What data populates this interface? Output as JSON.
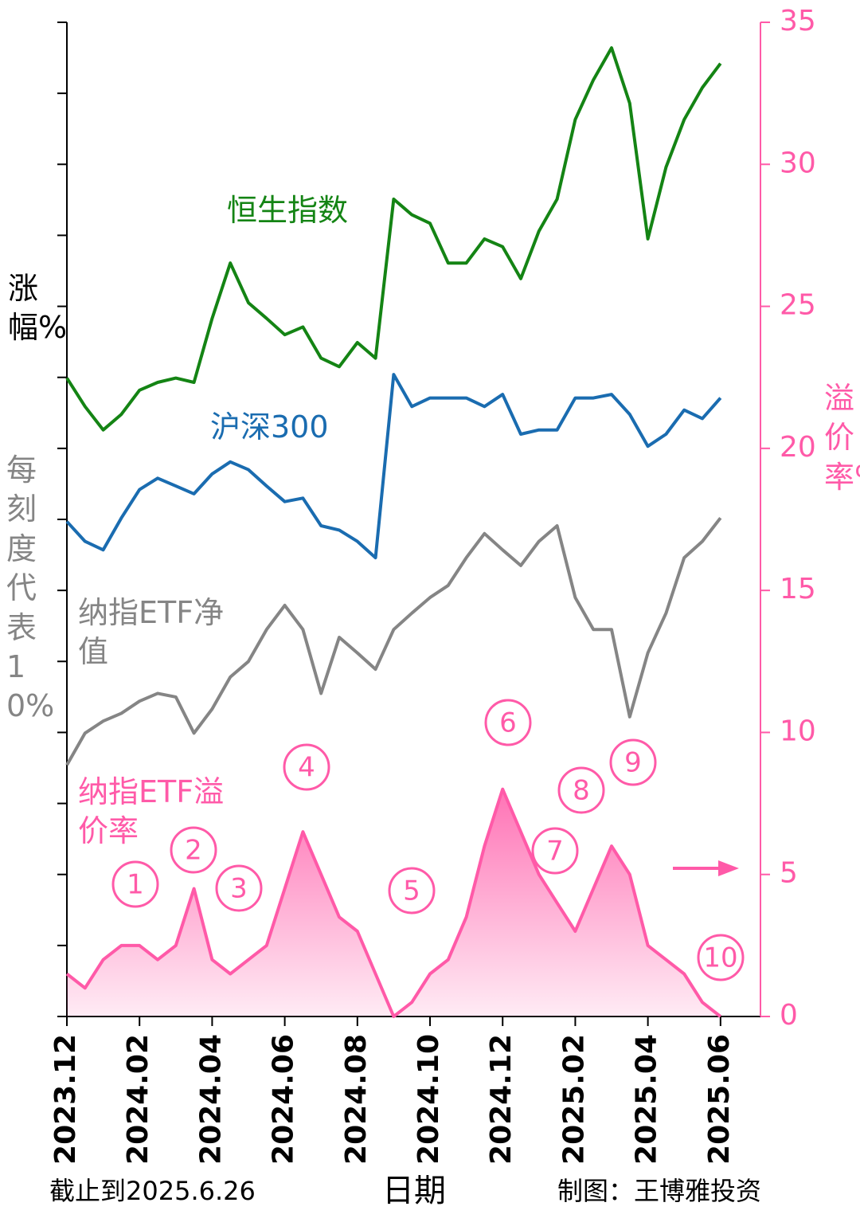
{
  "chart_data": {
    "type": "line",
    "x_label": "日期",
    "y_label": "涨幅%",
    "y_note": "每刻度代表10%",
    "y2_label": "溢价率%",
    "note": "截止到2025.6.26",
    "credit": "制图：王博雅投资",
    "xlim": [
      0,
      19.1
    ],
    "xticks": [
      {
        "value": 0,
        "label": "2023.12"
      },
      {
        "value": 2,
        "label": "2024.02"
      },
      {
        "value": 4,
        "label": "2024.04"
      },
      {
        "value": 6,
        "label": "2024.06"
      },
      {
        "value": 8,
        "label": "2024.08"
      },
      {
        "value": 10,
        "label": "2024.10"
      },
      {
        "value": 12,
        "label": "2024.12"
      },
      {
        "value": 14,
        "label": "2025.02"
      },
      {
        "value": 16,
        "label": "2025.04"
      },
      {
        "value": 18,
        "label": "2025.06"
      }
    ],
    "ylim": [
      0,
      140
    ],
    "yticks": [
      0,
      10,
      20,
      30,
      40,
      50,
      60,
      70,
      80,
      90,
      100,
      110,
      120,
      130,
      140
    ],
    "y2lim": [
      0,
      35
    ],
    "y2ticks": [
      0,
      5,
      10,
      15,
      20,
      25,
      30,
      35
    ],
    "x": [
      0,
      0.5,
      1,
      1.5,
      2,
      2.5,
      3,
      3.5,
      4,
      4.5,
      5,
      5.5,
      6,
      6.5,
      7,
      7.5,
      8,
      8.5,
      9,
      9.5,
      10,
      10.5,
      11,
      11.5,
      12,
      12.5,
      13,
      13.5,
      14,
      14.5,
      15,
      15.5,
      16,
      16.5,
      17,
      17.5,
      18
    ],
    "series": [
      {
        "name": "恒生指数",
        "color": "#148414",
        "values": [
          89.9,
          85.9,
          82.6,
          84.8,
          88.2,
          89.3,
          89.9,
          89.3,
          98.3,
          106.1,
          100.5,
          98.3,
          96.0,
          97.1,
          92.7,
          91.5,
          94.9,
          92.7,
          115.1,
          112.9,
          111.7,
          106.1,
          106.1,
          109.5,
          108.4,
          103.9,
          110.6,
          115.1,
          126.3,
          131.9,
          136.4,
          128.6,
          109.5,
          119.6,
          126.3,
          130.8,
          134.2
        ]
      },
      {
        "name": "沪深300",
        "color": "#1a6cb0",
        "values": [
          69.7,
          66.9,
          65.7,
          70.2,
          74.2,
          75.8,
          74.7,
          73.6,
          76.4,
          78.1,
          77.0,
          74.7,
          72.5,
          73.0,
          69.1,
          68.5,
          66.9,
          64.6,
          90.4,
          85.9,
          87.1,
          87.1,
          87.1,
          85.9,
          87.6,
          82.0,
          82.6,
          82.6,
          87.1,
          87.1,
          87.6,
          84.8,
          80.3,
          82.0,
          85.4,
          84.2,
          87.1
        ]
      },
      {
        "name": "纳指ETF净值",
        "color": "#858585",
        "values": [
          35.4,
          39.9,
          41.6,
          42.7,
          44.4,
          45.5,
          45.0,
          39.9,
          43.3,
          47.8,
          50.0,
          54.5,
          57.9,
          54.5,
          45.5,
          53.4,
          51.2,
          48.9,
          54.5,
          56.8,
          59.0,
          60.7,
          64.6,
          68.0,
          65.7,
          63.5,
          66.9,
          69.1,
          59.0,
          54.5,
          54.5,
          42.2,
          51.2,
          56.8,
          64.6,
          66.9,
          70.2
        ]
      },
      {
        "name": "纳指ETF溢价率",
        "color": "#ff5aa8",
        "axis": "y2",
        "area": true,
        "values": [
          1.5,
          1.0,
          2.0,
          2.5,
          2.5,
          2.0,
          2.5,
          4.5,
          2.0,
          1.5,
          2.0,
          2.5,
          4.5,
          6.5,
          5.0,
          3.5,
          3.0,
          1.5,
          0.0,
          0.5,
          1.5,
          2.0,
          3.5,
          6.0,
          8.0,
          6.5,
          5.0,
          4.0,
          3.0,
          4.5,
          6.0,
          5.0,
          2.5,
          2.0,
          1.5,
          0.5,
          0.0
        ]
      }
    ],
    "annotations": [
      "1",
      "2",
      "3",
      "4",
      "5",
      "6",
      "7",
      "8",
      "9",
      "10"
    ]
  }
}
